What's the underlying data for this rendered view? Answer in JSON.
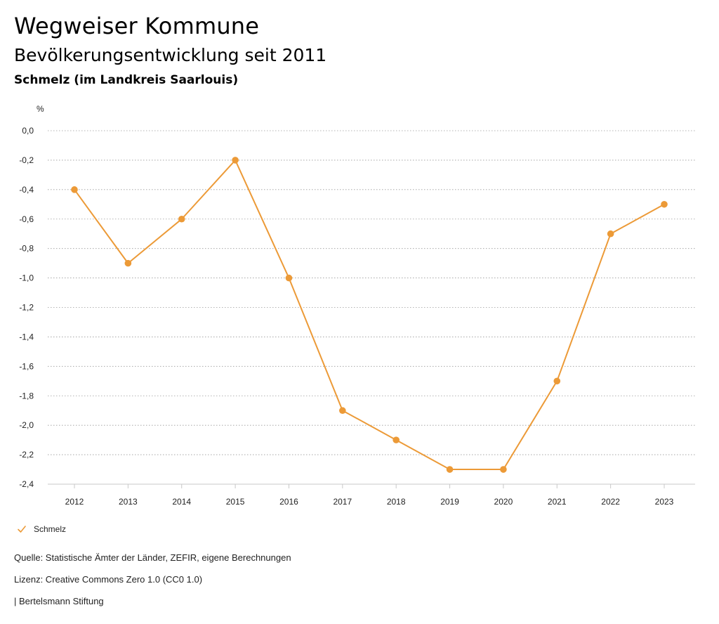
{
  "header": {
    "title": "Wegweiser Kommune",
    "subtitle": "Bevölkerungsentwicklung seit 2011",
    "region": "Schmelz (im Landkreis Saarlouis)"
  },
  "colors": {
    "series": "#ec9a37",
    "grid": "#9a9a9a",
    "text": "#222222"
  },
  "chart_data": {
    "type": "line",
    "title": "Bevölkerungsentwicklung seit 2011",
    "xlabel": "",
    "ylabel": "%",
    "ylim": [
      -2.4,
      0.0
    ],
    "y_ticks": [
      "0,0",
      "-0,2",
      "-0,4",
      "-0,6",
      "-0,8",
      "-1,0",
      "-1,2",
      "-1,4",
      "-1,6",
      "-1,8",
      "-2,0",
      "-2,2",
      "-2,4"
    ],
    "y_tick_values": [
      0.0,
      -0.2,
      -0.4,
      -0.6,
      -0.8,
      -1.0,
      -1.2,
      -1.4,
      -1.6,
      -1.8,
      -2.0,
      -2.2,
      -2.4
    ],
    "x": [
      "2012",
      "2013",
      "2014",
      "2015",
      "2016",
      "2017",
      "2018",
      "2019",
      "2020",
      "2021",
      "2022",
      "2023"
    ],
    "series": [
      {
        "name": "Schmelz",
        "values": [
          -0.4,
          -0.9,
          -0.6,
          -0.2,
          -1.0,
          -1.9,
          -2.1,
          -2.3,
          -2.3,
          -1.7,
          -0.7,
          -0.5
        ]
      }
    ],
    "grid": true,
    "legend": "bottom-left"
  },
  "legend": {
    "label": "Schmelz",
    "icon": "check-icon"
  },
  "footer": {
    "source": "Quelle: Statistische Ämter der Länder, ZEFIR, eigene Berechnungen",
    "license": "Lizenz: Creative Commons Zero 1.0 (CC0 1.0)",
    "brand": "| Bertelsmann Stiftung"
  }
}
